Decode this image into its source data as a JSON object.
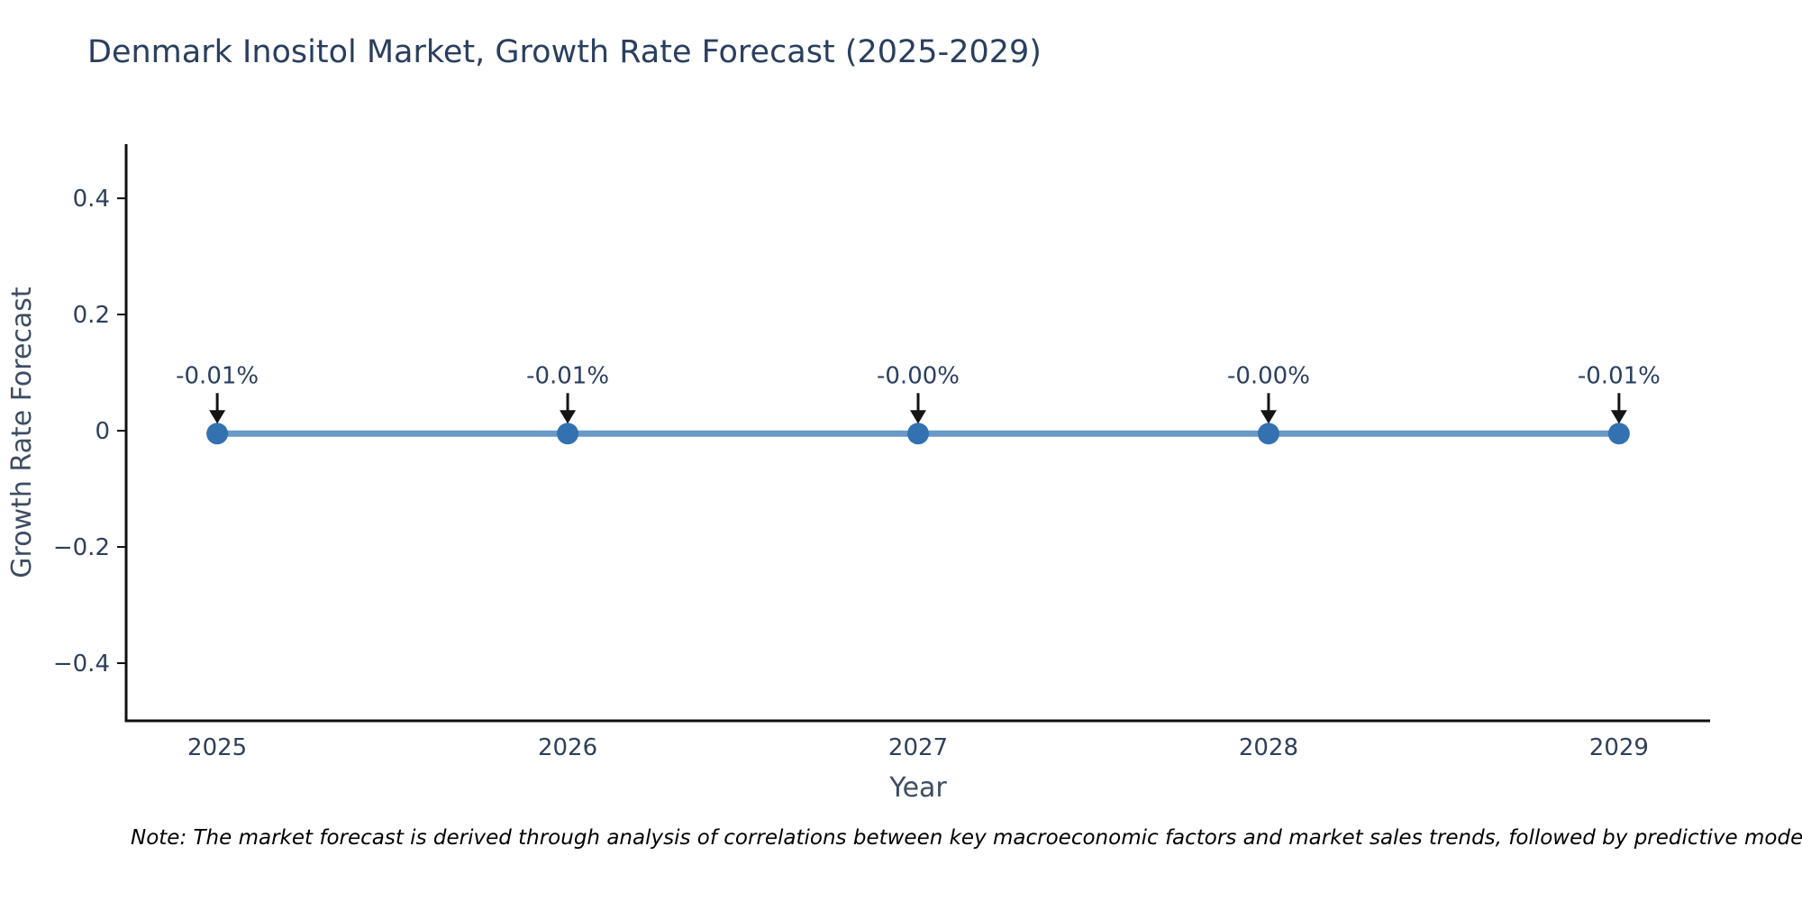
{
  "title": "Denmark Inositol Market, Growth Rate Forecast (2025-2029)",
  "note": "Note: The market forecast is derived through analysis of correlations between key macroeconomic factors and market sales trends, followed by predictive modeling to project future sales.",
  "chart_data": {
    "type": "line",
    "title": "Denmark Inositol Market, Growth Rate Forecast (2025-2029)",
    "x": [
      2025,
      2026,
      2027,
      2028,
      2029
    ],
    "x_tick_labels": [
      "2025",
      "2026",
      "2027",
      "2028",
      "2029"
    ],
    "values": [
      -0.01,
      -0.01,
      0.0,
      0.0,
      -0.01
    ],
    "point_labels": [
      "-0.01%",
      "-0.01%",
      "-0.00%",
      "-0.00%",
      "-0.01%"
    ],
    "line_plot_value": -0.005,
    "xlabel": "Year",
    "ylabel": "Growth Rate Forecast",
    "y_ticks": [
      0.4,
      0.2,
      0,
      -0.2,
      -0.4
    ],
    "y_tick_labels": [
      "0.4",
      "0.2",
      "0",
      "−0.2",
      "−0.4"
    ],
    "ylim": [
      -0.4992,
      0.4932
    ],
    "xlim": [
      2024.74,
      2029.26
    ],
    "grid": false,
    "legend": false,
    "annotation_style": "down-arrow",
    "colors": {
      "line": "#4e87be",
      "marker": "#3471b0",
      "axis": "#101010",
      "tick_label": "#2f3f5c",
      "axis_title": "#3e4c63",
      "annotation_text": "#2a3f5f",
      "arrow": "#141414",
      "title": "#2a3f5f",
      "note": "#000000",
      "background": "#ffffff"
    }
  }
}
